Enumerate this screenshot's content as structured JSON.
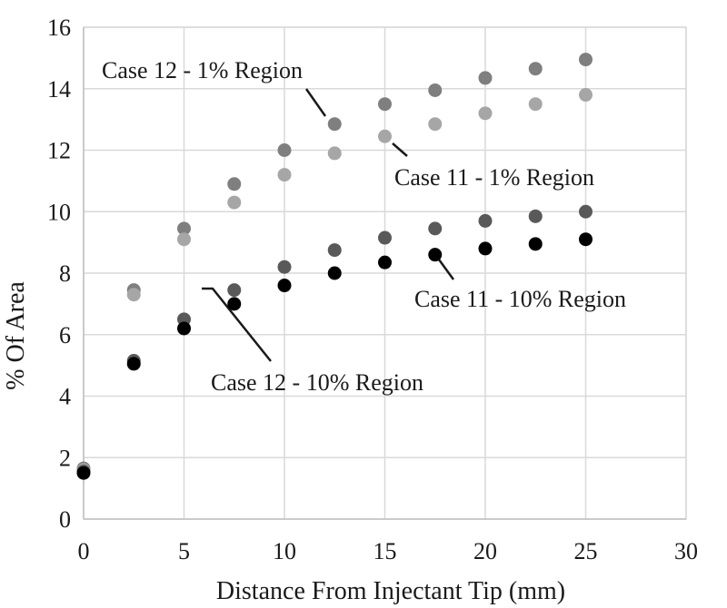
{
  "chart_data": {
    "type": "scatter",
    "title": "",
    "xlabel": "Distance From Injectant Tip (mm)",
    "ylabel": "% Of Area",
    "xlim": [
      0,
      30
    ],
    "ylim": [
      0,
      16
    ],
    "x_ticks": [
      0,
      5,
      10,
      15,
      20,
      25,
      30
    ],
    "y_ticks": [
      0,
      2,
      4,
      6,
      8,
      10,
      12,
      14,
      16
    ],
    "grid": true,
    "legend": "none",
    "series": [
      {
        "label": "Case 12 - 1% Region",
        "color": "#7f7f7f",
        "x": [
          0,
          2.5,
          5,
          7.5,
          10,
          12.5,
          15,
          17.5,
          20,
          22.5,
          25
        ],
        "y": [
          1.65,
          7.45,
          9.45,
          10.9,
          12.0,
          12.85,
          13.5,
          13.95,
          14.35,
          14.65,
          14.95
        ]
      },
      {
        "label": "Case 11 - 1% Region",
        "color": "#a6a6a6",
        "x": [
          0,
          2.5,
          5,
          7.5,
          10,
          12.5,
          15,
          17.5,
          20,
          22.5,
          25
        ],
        "y": [
          1.6,
          7.3,
          9.1,
          10.3,
          11.2,
          11.9,
          12.45,
          12.85,
          13.2,
          13.5,
          13.8
        ]
      },
      {
        "label": "Case 12 - 10% Region",
        "color": "#595959",
        "x": [
          0,
          2.5,
          5,
          7.5,
          10,
          12.5,
          15,
          17.5,
          20,
          22.5,
          25
        ],
        "y": [
          1.55,
          5.15,
          6.5,
          7.45,
          8.2,
          8.75,
          9.15,
          9.45,
          9.7,
          9.85,
          10.0
        ]
      },
      {
        "label": "Case 11 - 10% Region",
        "color": "#000000",
        "x": [
          0,
          2.5,
          5,
          7.5,
          10,
          12.5,
          15,
          17.5,
          20,
          22.5,
          25
        ],
        "y": [
          1.5,
          5.05,
          6.2,
          7.0,
          7.6,
          8.0,
          8.35,
          8.6,
          8.8,
          8.95,
          9.1
        ]
      }
    ],
    "annotations": [
      {
        "text": "Case 12 - 1% Region",
        "series": 0
      },
      {
        "text": "Case 11 - 1% Region",
        "series": 1
      },
      {
        "text": "Case 12 - 10% Region",
        "series": 2
      },
      {
        "text": "Case 11 - 10% Region",
        "series": 3
      }
    ]
  }
}
